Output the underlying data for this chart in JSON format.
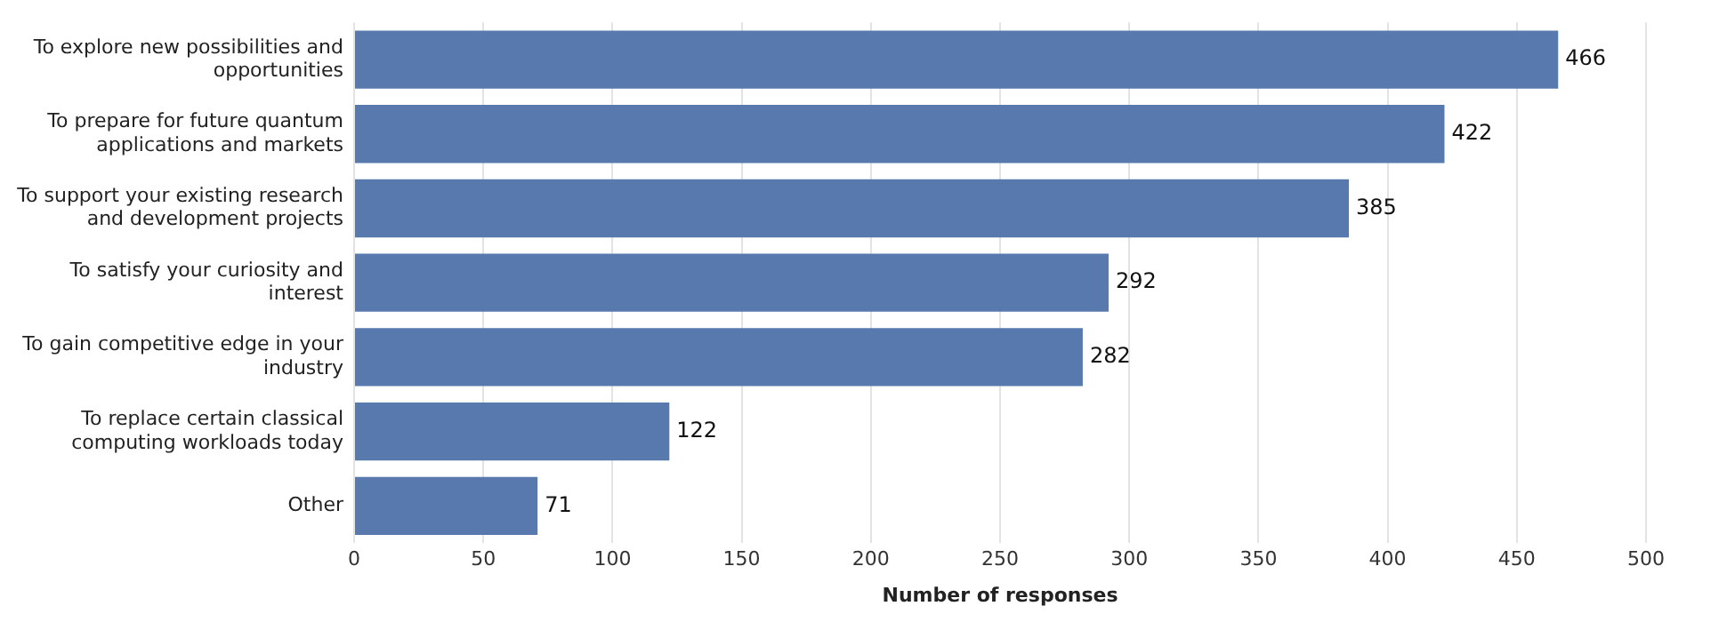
{
  "chart_data": {
    "type": "bar",
    "orientation": "horizontal",
    "xlabel": "Number of responses",
    "categories": [
      "To explore new possibilities and opportunities",
      "To prepare for future quantum applications and markets",
      "To support your existing research and development projects",
      "To satisfy your curiosity and interest",
      "To gain competitive edge in your industry",
      "To replace certain classical computing workloads today",
      "Other"
    ],
    "values": [
      466,
      422,
      385,
      292,
      282,
      122,
      71
    ],
    "color": "#5779ad",
    "xlim": [
      0,
      500
    ],
    "xticks": [
      0,
      50,
      100,
      150,
      200,
      250,
      300,
      350,
      400,
      450,
      500
    ],
    "grid": "x",
    "data_labels": true,
    "legend": false
  }
}
